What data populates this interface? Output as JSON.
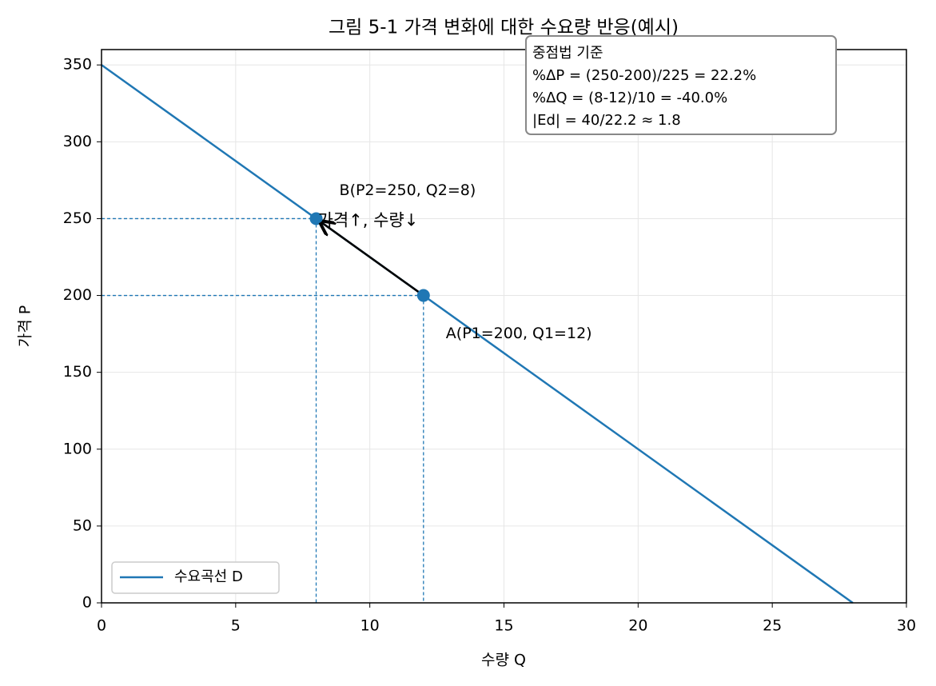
{
  "chart_data": {
    "type": "line",
    "title": "그림 5-1  가격 변화에 대한 수요량 반응(예시)",
    "xlabel": "수량 Q",
    "ylabel": "가격 P",
    "xlim": [
      0,
      30
    ],
    "ylim": [
      0,
      360
    ],
    "xticks": [
      0,
      5,
      10,
      15,
      20,
      25,
      30
    ],
    "yticks": [
      0,
      50,
      100,
      150,
      200,
      250,
      300,
      350
    ],
    "grid": true,
    "legend": "lower left",
    "series": [
      {
        "name": "수요곡선 D",
        "color": "#1f77b4",
        "x": [
          0,
          28
        ],
        "values": [
          350,
          0
        ]
      }
    ],
    "points": [
      {
        "label": "A(P1=200, Q1=12)",
        "x": 12,
        "y": 200
      },
      {
        "label": "B(P2=250, Q2=8)",
        "x": 8,
        "y": 250
      }
    ],
    "arrow_label": "가격↑, 수량↓",
    "note_lines": [
      "중점법 기준",
      "%ΔP = (250-200)/225 = 22.2%",
      "%ΔQ = (8-12)/10 = -40.0%",
      "|Ed| = 40/22.2 ≈ 1.8"
    ]
  }
}
